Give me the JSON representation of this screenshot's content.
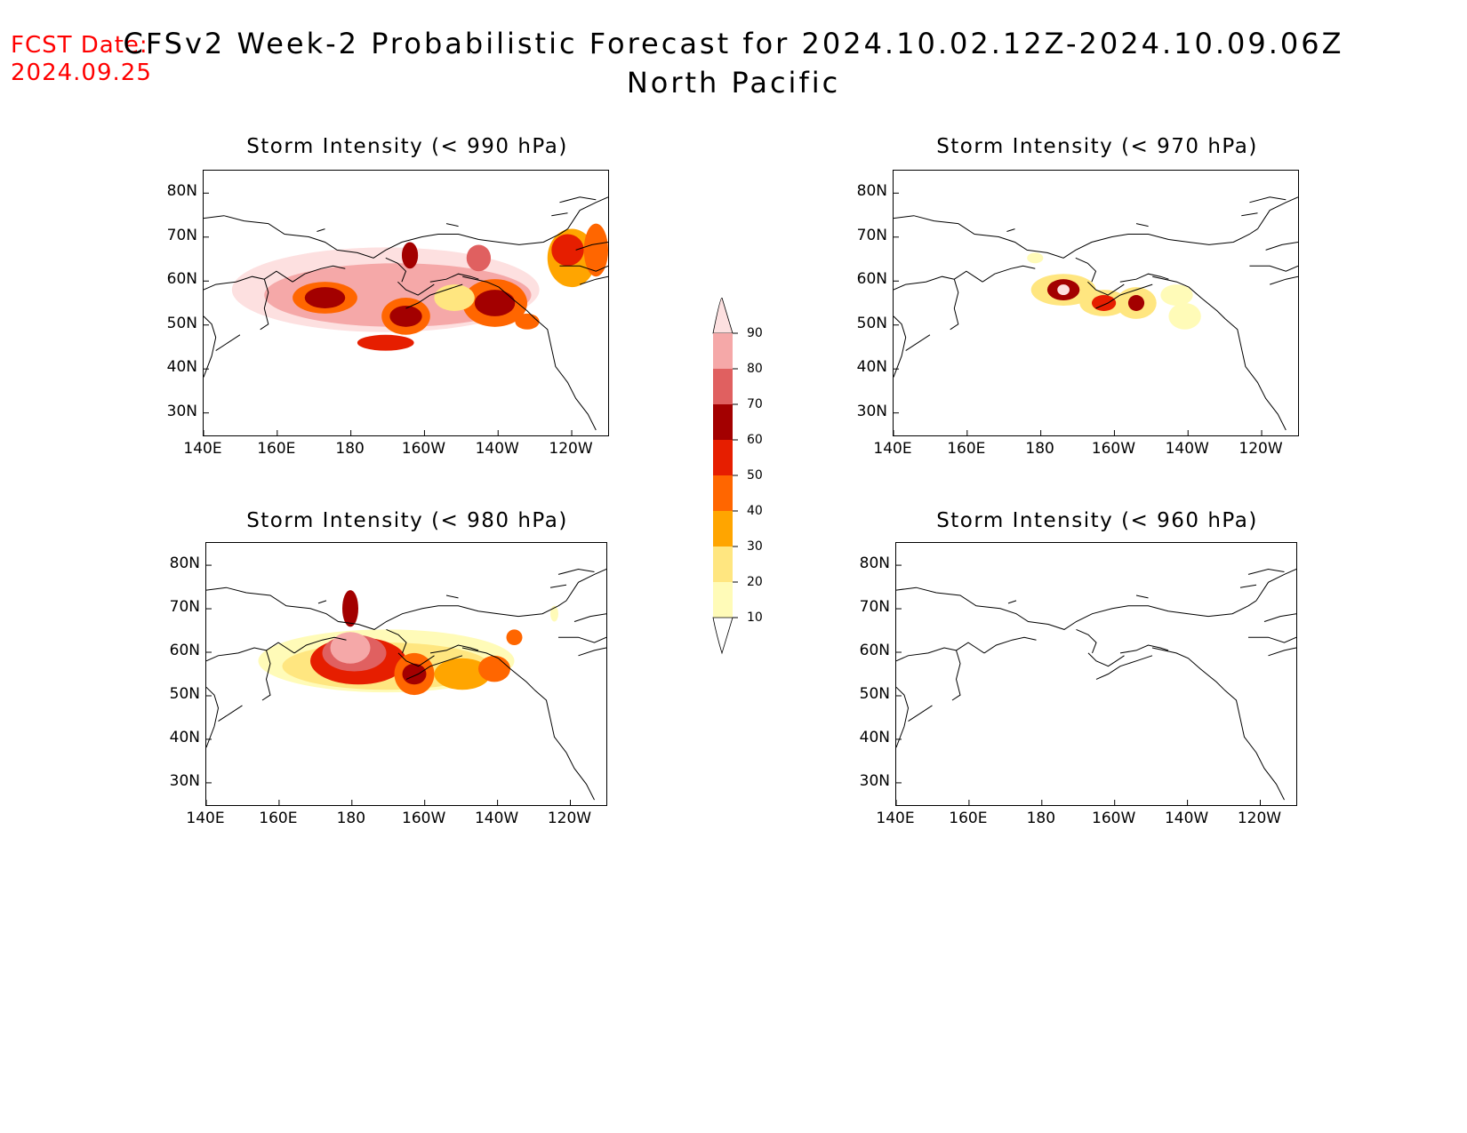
{
  "header": {
    "fcst_label": "FCST Date:",
    "fcst_date": "2024.09.25",
    "title": "CFSv2 Week-2 Probabilistic Forecast for 2024.10.02.12Z-2024.10.09.06Z",
    "region": "North Pacific"
  },
  "colors": {
    "fcst_text": "#ff0000",
    "levels": [
      "#fffbb8",
      "#ffe680",
      "#ffa500",
      "#ff6600",
      "#e61e00",
      "#a30000",
      "#e06060",
      "#f5a8a8",
      "#fde0e0"
    ]
  },
  "axes": {
    "y_ticks": [
      "80N",
      "70N",
      "60N",
      "50N",
      "40N",
      "30N"
    ],
    "x_ticks": [
      "140E",
      "160E",
      "180",
      "160W",
      "140W",
      "120W"
    ]
  },
  "colorbar": {
    "labels": [
      "90",
      "80",
      "70",
      "60",
      "50",
      "40",
      "30",
      "20",
      "10"
    ]
  },
  "panels": [
    {
      "id": "p990",
      "title": "Storm Intensity (< 990 hPa)"
    },
    {
      "id": "p970",
      "title": "Storm Intensity (< 970 hPa)"
    },
    {
      "id": "p980",
      "title": "Storm Intensity (< 980 hPa)"
    },
    {
      "id": "p960",
      "title": "Storm Intensity (< 960 hPa)"
    }
  ]
}
